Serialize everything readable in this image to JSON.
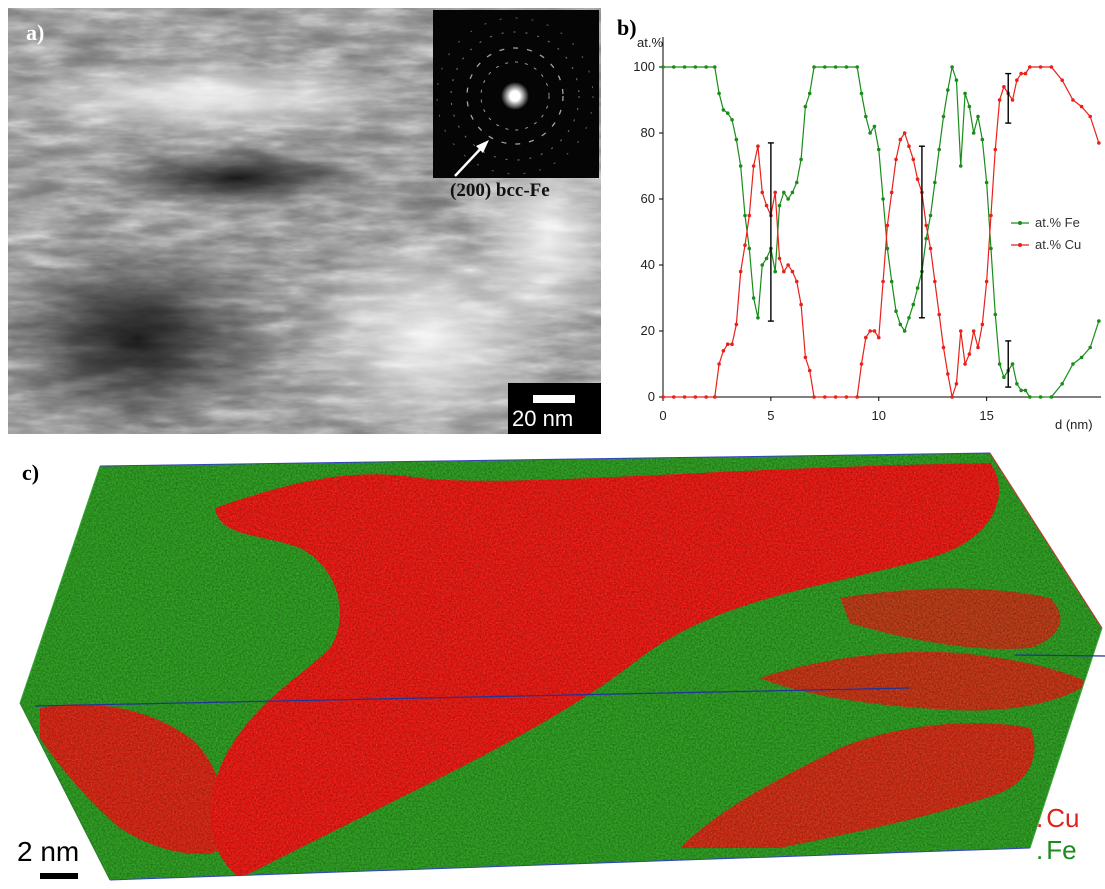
{
  "panel_a": {
    "label": "a)",
    "inset_annotation": "(200) bcc-Fe",
    "scale_bar": "20 nm"
  },
  "panel_b": {
    "label": "b)"
  },
  "panel_c": {
    "label": "c)",
    "scale_bar": "2 nm",
    "legend": [
      {
        "marker": ".",
        "label": "Cu",
        "color": "#e0201a"
      },
      {
        "marker": ".",
        "label": "Fe",
        "color": "#1f8a1f"
      }
    ]
  },
  "colors": {
    "fe": "#1a8c1a",
    "cu": "#e8211b",
    "fe_atoms": "#2e9e22",
    "cu_atoms": "#ee1a14"
  },
  "chart_data": {
    "type": "line",
    "ylabel": "at.%",
    "xlabel": "d (nm)",
    "xlim": [
      0,
      20.3
    ],
    "ylim": [
      0,
      100
    ],
    "xticks": [
      0,
      5,
      10,
      15
    ],
    "yticks": [
      0,
      20,
      40,
      60,
      80,
      100
    ],
    "grid": false,
    "legend_position": "right-middle",
    "series": [
      {
        "name": "at.% Fe",
        "color": "#1a8c1a",
        "x": [
          0,
          0.5,
          1,
          1.5,
          2,
          2.4,
          2.6,
          2.8,
          3,
          3.2,
          3.4,
          3.6,
          3.8,
          4,
          4.2,
          4.4,
          4.6,
          4.8,
          5,
          5.2,
          5.4,
          5.6,
          5.8,
          6,
          6.2,
          6.4,
          6.6,
          6.8,
          7,
          7.5,
          8,
          8.5,
          9,
          9.2,
          9.4,
          9.6,
          9.8,
          10,
          10.2,
          10.4,
          10.6,
          10.8,
          11,
          11.2,
          11.4,
          11.6,
          11.8,
          12,
          12.2,
          12.4,
          12.6,
          12.8,
          13,
          13.2,
          13.4,
          13.6,
          13.8,
          14,
          14.2,
          14.4,
          14.6,
          14.8,
          15,
          15.2,
          15.4,
          15.6,
          15.8,
          16,
          16.2,
          16.4,
          16.6,
          16.8,
          17,
          17.5,
          18,
          18.5,
          19,
          19.4,
          19.8,
          20.2
        ],
        "y": [
          100,
          100,
          100,
          100,
          100,
          100,
          92,
          87,
          86,
          84,
          78,
          70,
          55,
          45,
          30,
          24,
          40,
          42,
          45,
          38,
          58,
          62,
          60,
          62,
          65,
          72,
          88,
          92,
          100,
          100,
          100,
          100,
          100,
          92,
          85,
          80,
          82,
          75,
          60,
          45,
          35,
          26,
          22,
          20,
          24,
          28,
          33,
          38,
          48,
          55,
          65,
          75,
          85,
          93,
          100,
          96,
          70,
          92,
          88,
          80,
          85,
          78,
          65,
          45,
          25,
          10,
          6,
          8,
          10,
          4,
          2,
          2,
          0,
          0,
          0,
          4,
          10,
          12,
          15,
          23
        ]
      },
      {
        "name": "at.% Cu",
        "color": "#e8211b",
        "x": [
          0,
          0.5,
          1,
          1.5,
          2,
          2.4,
          2.6,
          2.8,
          3,
          3.2,
          3.4,
          3.6,
          3.8,
          4,
          4.2,
          4.4,
          4.6,
          4.8,
          5,
          5.2,
          5.4,
          5.6,
          5.8,
          6,
          6.2,
          6.4,
          6.6,
          6.8,
          7,
          7.5,
          8,
          8.5,
          9,
          9.2,
          9.4,
          9.6,
          9.8,
          10,
          10.2,
          10.4,
          10.6,
          10.8,
          11,
          11.2,
          11.4,
          11.6,
          11.8,
          12,
          12.2,
          12.4,
          12.6,
          12.8,
          13,
          13.2,
          13.4,
          13.6,
          13.8,
          14,
          14.2,
          14.4,
          14.6,
          14.8,
          15,
          15.2,
          15.4,
          15.6,
          15.8,
          16,
          16.2,
          16.4,
          16.6,
          16.8,
          17,
          17.5,
          18,
          18.5,
          19,
          19.4,
          19.8,
          20.2
        ],
        "y": [
          0,
          0,
          0,
          0,
          0,
          0,
          10,
          14,
          16,
          16,
          22,
          38,
          46,
          55,
          70,
          76,
          62,
          58,
          55,
          62,
          42,
          38,
          40,
          38,
          35,
          28,
          12,
          8,
          0,
          0,
          0,
          0,
          0,
          10,
          18,
          20,
          20,
          18,
          35,
          52,
          62,
          72,
          78,
          80,
          76,
          72,
          66,
          62,
          52,
          45,
          35,
          25,
          15,
          7,
          0,
          4,
          20,
          10,
          13,
          20,
          15,
          22,
          35,
          55,
          75,
          90,
          94,
          92,
          90,
          96,
          98,
          98,
          100,
          100,
          100,
          96,
          90,
          88,
          85,
          77
        ]
      }
    ],
    "error_bars": [
      {
        "x": 5,
        "low": 23,
        "high": 77
      },
      {
        "x": 12,
        "low": 24,
        "high": 76
      },
      {
        "x": 16,
        "low": 3,
        "high": 17
      },
      {
        "x": 16,
        "low": 83,
        "high": 98
      }
    ]
  }
}
